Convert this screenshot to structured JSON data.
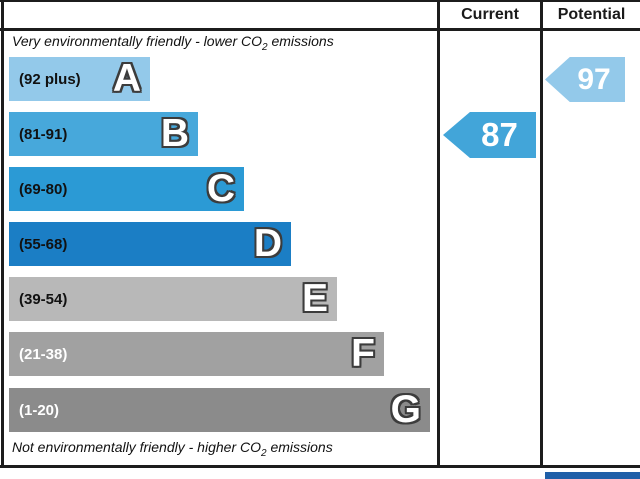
{
  "header": {
    "current_label": "Current",
    "potential_label": "Potential"
  },
  "notes": {
    "top": {
      "prefix": "Very environmentally friendly - lower CO",
      "sub": "2",
      "suffix": " emissions"
    },
    "bottom": {
      "prefix": "Not environmentally friendly - higher CO",
      "sub": "2",
      "suffix": " emissions"
    }
  },
  "chart_data": {
    "type": "bar",
    "orientation": "horizontal",
    "bands": [
      {
        "letter": "A",
        "range": "(92 plus)",
        "score_min": 92,
        "score_max": 100,
        "color": "#93c9ea",
        "label_color": "#111111"
      },
      {
        "letter": "B",
        "range": "(81-91)",
        "score_min": 81,
        "score_max": 91,
        "color": "#47a8db",
        "label_color": "#111111"
      },
      {
        "letter": "C",
        "range": "(69-80)",
        "score_min": 69,
        "score_max": 80,
        "color": "#2b9ad5",
        "label_color": "#111111"
      },
      {
        "letter": "D",
        "range": "(55-68)",
        "score_min": 55,
        "score_max": 68,
        "color": "#1b7ec5",
        "label_color": "#111111"
      },
      {
        "letter": "E",
        "range": "(39-54)",
        "score_min": 39,
        "score_max": 54,
        "color": "#b8b8b8",
        "label_color": "#111111"
      },
      {
        "letter": "F",
        "range": "(21-38)",
        "score_min": 21,
        "score_max": 38,
        "color": "#a1a1a1",
        "label_color": "#ffffff"
      },
      {
        "letter": "G",
        "range": "(1-20)",
        "score_min": 1,
        "score_max": 20,
        "color": "#8b8b8b",
        "label_color": "#ffffff"
      }
    ],
    "current": {
      "value": 87,
      "band": "B",
      "color": "#42a5d9"
    },
    "potential": {
      "value": 97,
      "band": "A",
      "color": "#93c9ea"
    }
  },
  "footer": {
    "eu_flag_box_color": "#1f5fa8"
  }
}
